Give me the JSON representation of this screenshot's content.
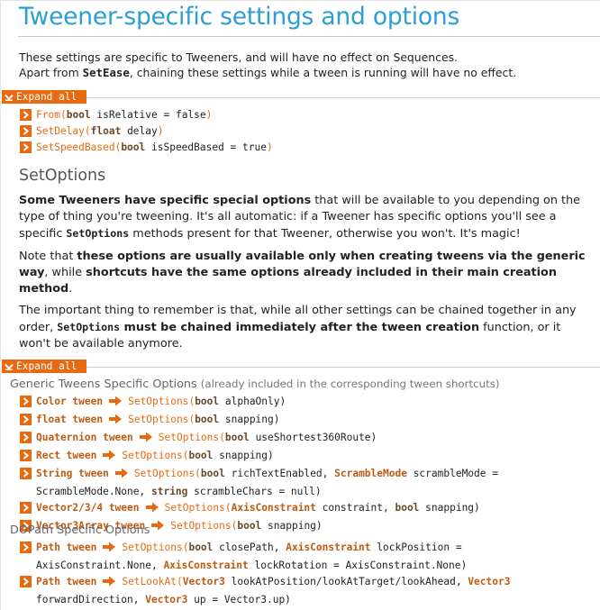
{
  "title": "Tweener-specific settings and options",
  "intro": {
    "line1": "These settings are specific to Tweeners, and will have no effect on Sequences.",
    "line2_pre": "Apart from ",
    "line2_code": "SetEase",
    "line2_post": ", chaining these settings while a tween is running will have no effect."
  },
  "expand_all_label": "Expand all",
  "methods": [
    {
      "name": "From",
      "open": "(",
      "t1": "bool",
      "p1": " isRelative = false",
      "close": ")"
    },
    {
      "name": "SetDelay",
      "open": "(",
      "t1": "float",
      "p1": " delay",
      "close": ")"
    },
    {
      "name": "SetSpeedBased",
      "open": "(",
      "t1": "bool",
      "p1": " isSpeedBased = true",
      "close": ")"
    }
  ],
  "setoptions": {
    "heading": "SetOptions",
    "p1_bold": "Some Tweeners have specific special options",
    "p1_rest1": " that will be available to you depending on the type of thing you're tweening. It's all automatic: if a Tweener has specific options you'll see a specific ",
    "p1_code": "SetOptions",
    "p1_rest2": " methods present for that Tweener, otherwise you won't. It's magic!",
    "p2_pre": "Note that ",
    "p2_b1": "these options are usually available only when creating tweens via the generic way",
    "p2_mid": ", while ",
    "p2_b2": "shortcuts have the same options already included in their main creation method",
    "p2_end": ".",
    "p3_pre": "The important thing to remember is that, while all other settings can be chained together in any order, ",
    "p3_code": "SetOptions",
    "p3_b": " must be chained immediately after the tween creation",
    "p3_end": " function, or it won't be available anymore."
  },
  "generic_group": {
    "title": "Generic Tweens Specific Options",
    "note": "(already included in the corresponding tween shortcuts)"
  },
  "path_group": {
    "title": "DOPath Specific Options"
  },
  "tweens": {
    "color": {
      "name": "Color tween",
      "fn": "SetOptions(",
      "t": "bool",
      "p": " alphaOnly)"
    },
    "float": {
      "name": "float tween",
      "fn": "SetOptions(",
      "t": "bool",
      "p": " snapping)"
    },
    "quat": {
      "name": "Quaternion tween",
      "fn": "SetOptions(",
      "t": "bool",
      "p": " useShortest360Route)"
    },
    "rect": {
      "name": "Rect tween",
      "fn": "SetOptions(",
      "t": "bool",
      "p": " snapping)"
    },
    "string": {
      "name": "String tween",
      "fn": "SetOptions(",
      "t1": "bool",
      "p1": " richTextEnabled, ",
      "t2": "ScrambleMode",
      "p2": " scrambleMode =",
      "line2a": "ScrambleMode.None, ",
      "t3": "string",
      "p3": " scrambleChars = null)"
    },
    "vec": {
      "name": "Vector2/3/4 tween",
      "fn": "SetOptions(",
      "t1": "AxisConstraint",
      "p1": " constraint, ",
      "t2": "bool",
      "p2": " snapping)"
    },
    "v3arr": {
      "name": "Vector3Array tween",
      "fn": "SetOptions(",
      "t": "bool",
      "p": " snapping)"
    },
    "path1": {
      "name": "Path tween",
      "fn": "SetOptions(",
      "t1": "bool",
      "p1": " closePath, ",
      "t2": "AxisConstraint",
      "p2": " lockPosition =",
      "line2a": "AxisConstraint.None, ",
      "t3": "AxisConstraint",
      "p3": " lockRotation = AxisConstraint.None)"
    },
    "path2": {
      "name": "Path tween",
      "fn": "SetLookAt(",
      "t1": "Vector3",
      "p1": " lookAtPosition/lookAtTarget/lookAhead, ",
      "t2": "Vector3",
      "line2a": "forwardDirection, ",
      "t3": "Vector3",
      "p3": " up = Vector3.up)"
    }
  },
  "colors": {
    "accent": "#e86a10",
    "title": "#2b9fd3"
  }
}
